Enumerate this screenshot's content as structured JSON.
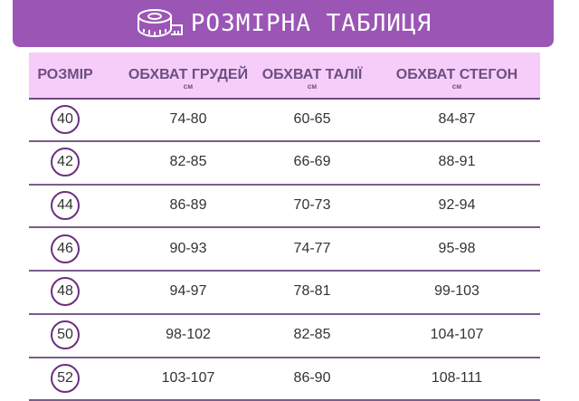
{
  "title": "РОЗМІРНА ТАБЛИЦЯ",
  "icon": "measuring-tape-icon",
  "colors": {
    "banner": "#9b56b5",
    "header": "#f6cdf9",
    "circle": "#6b2f80"
  },
  "columns": [
    {
      "label": "РОЗМІР",
      "unit": ""
    },
    {
      "label": "ОБХВАТ ГРУДЕЙ",
      "unit": "см"
    },
    {
      "label": "ОБХВАТ ТАЛІЇ",
      "unit": "см"
    },
    {
      "label": "ОБХВАТ СТЕГОН",
      "unit": "см"
    }
  ],
  "rows": [
    [
      "40",
      "74-80",
      "60-65",
      "84-87"
    ],
    [
      "42",
      "82-85",
      "66-69",
      "88-91"
    ],
    [
      "44",
      "86-89",
      "70-73",
      "92-94"
    ],
    [
      "46",
      "90-93",
      "74-77",
      "95-98"
    ],
    [
      "48",
      "94-97",
      "78-81",
      "99-103"
    ],
    [
      "50",
      "98-102",
      "82-85",
      "104-107"
    ],
    [
      "52",
      "103-107",
      "86-90",
      "108-111"
    ]
  ]
}
